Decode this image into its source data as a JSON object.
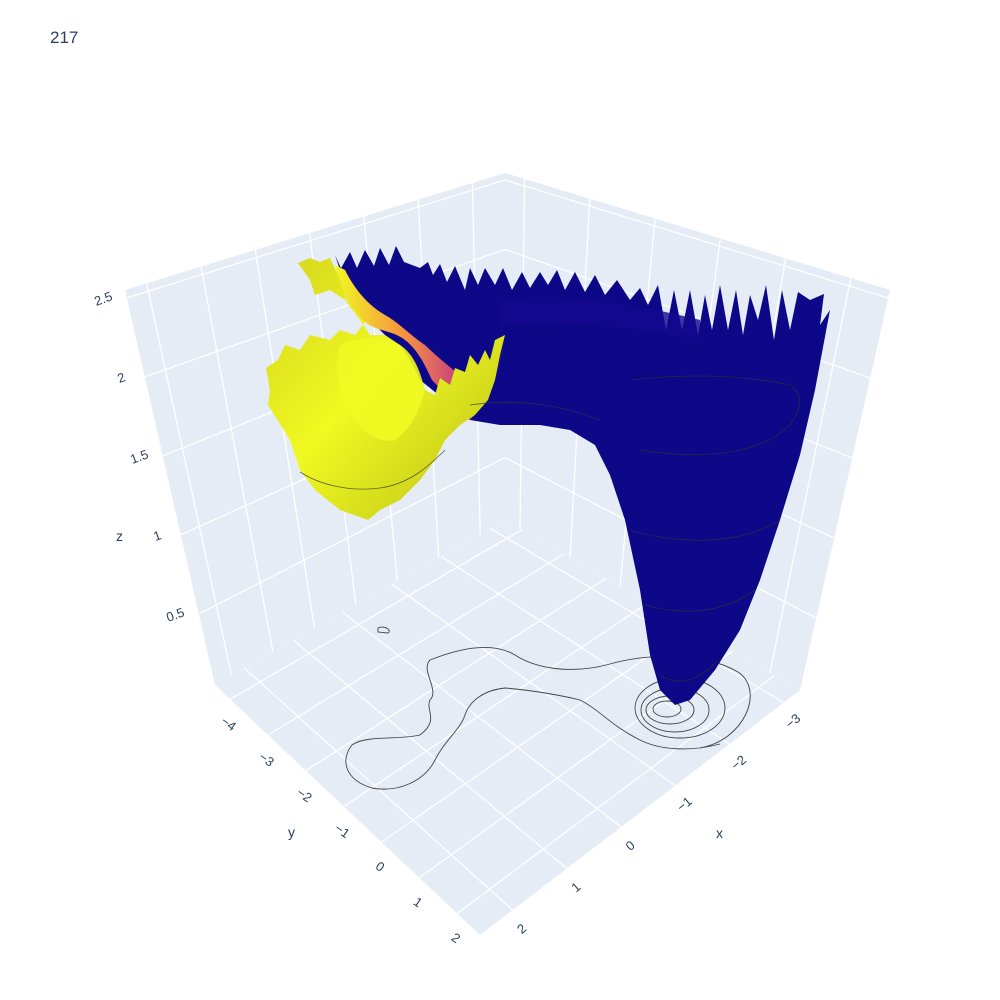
{
  "chart_data": {
    "type": "surface",
    "title": "217",
    "colorscale": "plasma",
    "axes": {
      "x": {
        "title": "x",
        "range": [
          -3.3,
          2.6
        ],
        "ticks": [
          "−3",
          "−2",
          "−1",
          "0",
          "1",
          "2"
        ]
      },
      "y": {
        "title": "y",
        "range": [
          -4.4,
          2.6
        ],
        "ticks": [
          "−4",
          "−3",
          "−2",
          "−1",
          "0",
          "1",
          "2"
        ]
      },
      "z": {
        "title": "z",
        "range": [
          0.05,
          2.55
        ],
        "ticks": [
          "0.5",
          "1",
          "1.5",
          "2",
          "2.5"
        ]
      }
    },
    "surface": {
      "description_min": {
        "x": -2.7,
        "y": 0.4,
        "z": 0.18
      },
      "plateau_z": 2.2,
      "high_region_z_max": 2.45,
      "contours_projected_on_floor": true
    },
    "colors": {
      "scene_bg": "#e5ecf6",
      "grid": "#ffffff",
      "low": "#0d0887",
      "mid": "#cc4778",
      "high": "#f0f921",
      "high_shaded": "#c2c418",
      "contour": "#444444"
    }
  }
}
